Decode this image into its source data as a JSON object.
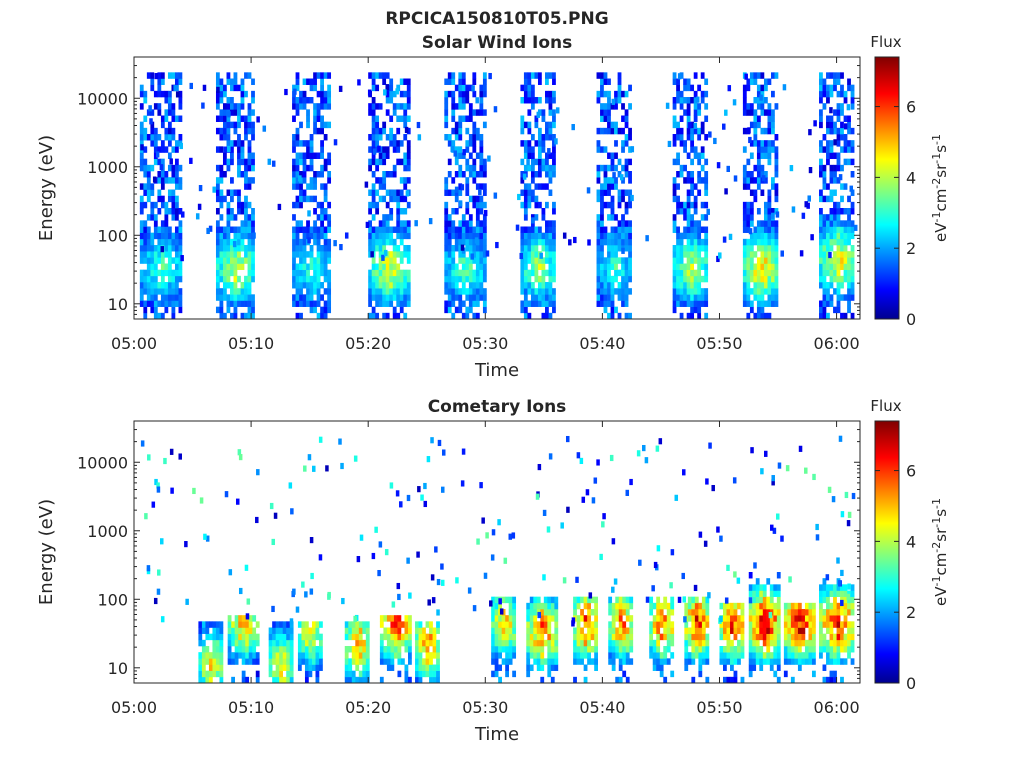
{
  "figure_title": "RPCICA150810T05.PNG",
  "colorbar": {
    "label_text": "Flux",
    "unit_parts": [
      "eV",
      "-1",
      "cm",
      "-2",
      "sr",
      "-1",
      "s",
      "-1"
    ],
    "range": [
      0,
      7.4
    ],
    "ticks": [
      "0",
      "2",
      "4",
      "6"
    ],
    "colormap": "jet"
  },
  "chart_data": [
    {
      "type": "heatmap",
      "title": "Solar Wind Ions",
      "xlabel": "Time",
      "ylabel": "Energy (eV)",
      "yscale": "log",
      "xlim": [
        "05:00",
        "06:02"
      ],
      "ylim": [
        6,
        40000
      ],
      "xticks": [
        "05:00",
        "05:10",
        "05:20",
        "05:30",
        "05:40",
        "05:50",
        "06:00"
      ],
      "yticks": [
        "10",
        "100",
        "1000",
        "10000"
      ],
      "grid": false,
      "bursts": [
        {
          "start": "05:00.5",
          "end": "05:04.0",
          "emax": 20000,
          "peak_energy": 30,
          "peak_flux": 3.6
        },
        {
          "start": "05:07.0",
          "end": "05:10.2",
          "emax": 20000,
          "peak_energy": 30,
          "peak_flux": 4.6
        },
        {
          "start": "05:13.5",
          "end": "05:16.8",
          "emax": 20000,
          "peak_energy": 30,
          "peak_flux": 3.4
        },
        {
          "start": "05:20.0",
          "end": "05:23.5",
          "emax": 20000,
          "peak_energy": 30,
          "peak_flux": 4.8
        },
        {
          "start": "05:26.5",
          "end": "05:30.0",
          "emax": 20000,
          "peak_energy": 30,
          "peak_flux": 3.6
        },
        {
          "start": "05:33.0",
          "end": "05:36.0",
          "emax": 20000,
          "peak_energy": 30,
          "peak_flux": 4.2
        },
        {
          "start": "05:39.5",
          "end": "05:42.5",
          "emax": 20000,
          "peak_energy": 30,
          "peak_flux": 3.4
        },
        {
          "start": "05:46.0",
          "end": "05:49.0",
          "emax": 20000,
          "peak_energy": 30,
          "peak_flux": 4.4
        },
        {
          "start": "05:52.0",
          "end": "05:55.0",
          "emax": 20000,
          "peak_energy": 30,
          "peak_flux": 5.2
        },
        {
          "start": "05:58.5",
          "end": "06:01.5",
          "emax": 20000,
          "peak_energy": 40,
          "peak_flux": 5.0
        }
      ]
    },
    {
      "type": "heatmap",
      "title": "Cometary Ions",
      "xlabel": "Time",
      "ylabel": "Energy (eV)",
      "yscale": "log",
      "xlim": [
        "05:00",
        "06:02"
      ],
      "ylim": [
        6,
        40000
      ],
      "xticks": [
        "05:00",
        "05:10",
        "05:20",
        "05:30",
        "05:40",
        "05:50",
        "06:00"
      ],
      "yticks": [
        "10",
        "100",
        "1000",
        "10000"
      ],
      "grid": false,
      "bursts": [
        {
          "start": "05:05.5",
          "end": "05:07.5",
          "emax": 40,
          "peak_energy": 10,
          "peak_flux": 5.2
        },
        {
          "start": "05:08.0",
          "end": "05:10.5",
          "emax": 50,
          "peak_energy": 40,
          "peak_flux": 5.6
        },
        {
          "start": "05:11.5",
          "end": "05:13.5",
          "emax": 40,
          "peak_energy": 10,
          "peak_flux": 5.0
        },
        {
          "start": "05:14.0",
          "end": "05:16.0",
          "emax": 40,
          "peak_energy": 30,
          "peak_flux": 5.2
        },
        {
          "start": "05:18.0",
          "end": "05:20.0",
          "emax": 40,
          "peak_energy": 20,
          "peak_flux": 5.8
        },
        {
          "start": "05:21.0",
          "end": "05:23.5",
          "emax": 50,
          "peak_energy": 40,
          "peak_flux": 6.6
        },
        {
          "start": "05:24.0",
          "end": "05:26.0",
          "emax": 40,
          "peak_energy": 20,
          "peak_flux": 6.0
        },
        {
          "start": "05:30.5",
          "end": "05:32.5",
          "emax": 100,
          "peak_energy": 40,
          "peak_flux": 5.6
        },
        {
          "start": "05:33.5",
          "end": "05:36.0",
          "emax": 100,
          "peak_energy": 30,
          "peak_flux": 6.2
        },
        {
          "start": "05:37.5",
          "end": "05:39.5",
          "emax": 100,
          "peak_energy": 40,
          "peak_flux": 6.6
        },
        {
          "start": "05:40.5",
          "end": "05:42.5",
          "emax": 100,
          "peak_energy": 40,
          "peak_flux": 6.2
        },
        {
          "start": "05:44.0",
          "end": "05:46.0",
          "emax": 100,
          "peak_energy": 40,
          "peak_flux": 6.4
        },
        {
          "start": "05:47.0",
          "end": "05:49.0",
          "emax": 100,
          "peak_energy": 40,
          "peak_flux": 6.8
        },
        {
          "start": "05:50.0",
          "end": "05:52.0",
          "emax": 80,
          "peak_energy": 40,
          "peak_flux": 7.0
        },
        {
          "start": "05:52.5",
          "end": "05:55.0",
          "emax": 250,
          "peak_energy": 40,
          "peak_flux": 7.4
        },
        {
          "start": "05:55.5",
          "end": "05:58.0",
          "emax": 80,
          "peak_energy": 40,
          "peak_flux": 7.2
        },
        {
          "start": "05:58.5",
          "end": "06:01.5",
          "emax": 200,
          "peak_energy": 40,
          "peak_flux": 6.8
        }
      ]
    }
  ]
}
